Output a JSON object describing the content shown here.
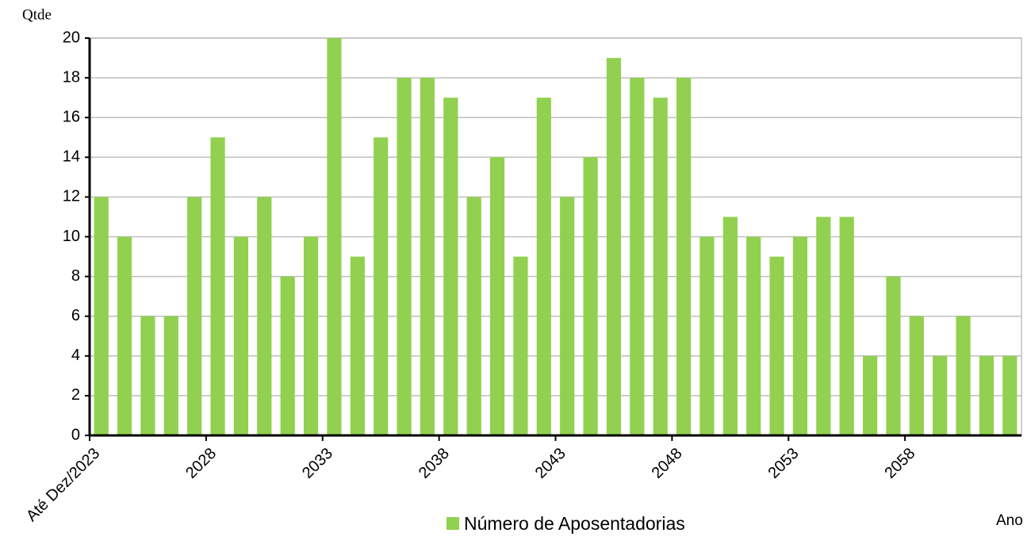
{
  "chart_data": {
    "type": "bar",
    "y_label": "Qtde",
    "x_label": "Ano",
    "categories": [
      "Até Dez/2023",
      null,
      null,
      null,
      null,
      "2028",
      null,
      null,
      null,
      null,
      "2033",
      null,
      null,
      null,
      null,
      "2038",
      null,
      null,
      null,
      null,
      "2043",
      null,
      null,
      null,
      null,
      "2048",
      null,
      null,
      null,
      null,
      "2053",
      null,
      null,
      null,
      null,
      "2058",
      null,
      null,
      null,
      null
    ],
    "series": [
      {
        "name": "Número de Aposentadorias",
        "color": "#92d050",
        "values": [
          12,
          10,
          6,
          6,
          12,
          15,
          10,
          12,
          8,
          10,
          20,
          9,
          15,
          18,
          18,
          17,
          12,
          14,
          9,
          17,
          12,
          14,
          19,
          18,
          17,
          18,
          10,
          11,
          10,
          9,
          10,
          11,
          11,
          4,
          8,
          6,
          4,
          6,
          4,
          4
        ]
      }
    ],
    "ylim": [
      0,
      20
    ],
    "yticks": [
      0,
      2,
      4,
      6,
      8,
      10,
      12,
      14,
      16,
      18,
      20
    ],
    "grid": true
  }
}
